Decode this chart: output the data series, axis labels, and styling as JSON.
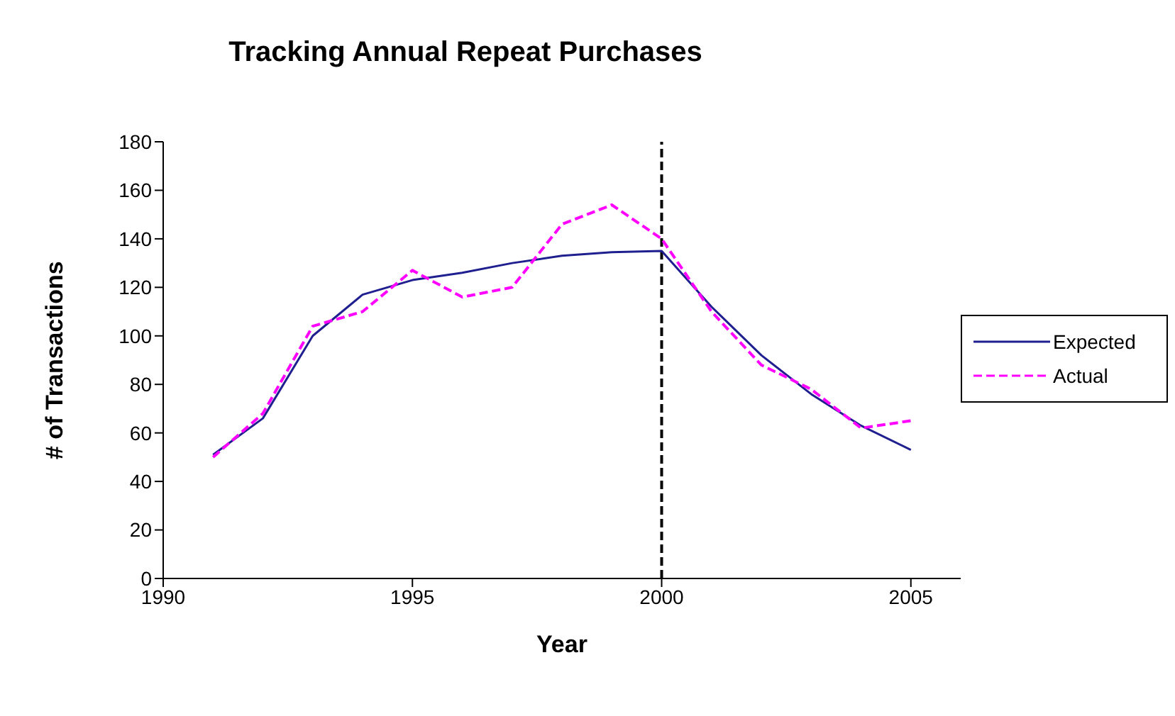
{
  "chart_data": {
    "type": "line",
    "title": "Tracking Annual Repeat Purchases",
    "xlabel": "Year",
    "ylabel": "# of Transactions",
    "x": [
      1991,
      1992,
      1993,
      1994,
      1995,
      1996,
      1997,
      1998,
      1999,
      2000,
      2001,
      2002,
      2003,
      2004,
      2005
    ],
    "series": [
      {
        "name": "Expected",
        "color": "#1f1f8f",
        "line_style": "solid",
        "values": [
          51,
          66,
          100,
          117,
          123,
          126,
          130,
          133,
          134.5,
          135,
          112,
          92,
          76,
          63,
          53
        ]
      },
      {
        "name": "Actual",
        "color": "#ff00ff",
        "line_style": "dashed",
        "values": [
          50,
          68,
          104,
          110,
          127,
          116,
          120,
          146,
          154,
          140,
          110,
          88,
          78,
          62,
          65
        ]
      }
    ],
    "xlim": [
      1990,
      2006
    ],
    "xticks": [
      1990,
      1995,
      2000,
      2005
    ],
    "ylim": [
      0,
      180
    ],
    "yticks": [
      0,
      20,
      40,
      60,
      80,
      100,
      120,
      140,
      160,
      180
    ],
    "ref_lines": [
      {
        "axis": "x",
        "value": 2000,
        "color": "#000000",
        "line_style": "dashed"
      }
    ],
    "grid": false,
    "legend": "right",
    "marker": "none"
  }
}
